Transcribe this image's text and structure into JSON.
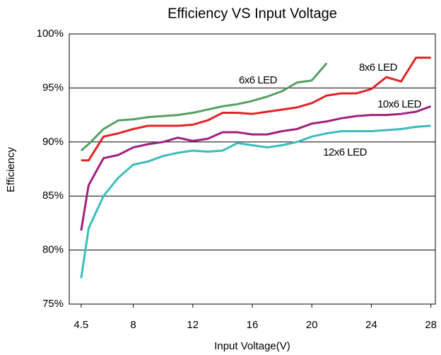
{
  "chart_data": {
    "type": "line",
    "title": "Efficiency VS Input Voltage",
    "x_label": "Input Voltage(V)",
    "y_label": "Efficiency",
    "x": [
      4.5,
      5,
      6,
      7,
      8,
      9,
      10,
      11,
      12,
      13,
      14,
      15,
      16,
      17,
      18,
      19,
      20,
      21,
      22,
      23,
      24,
      25,
      26,
      27,
      28
    ],
    "series": [
      {
        "name": "6x6 LED",
        "color": "#55a060",
        "values": [
          89.2,
          89.8,
          91.2,
          92.0,
          92.1,
          92.3,
          92.4,
          92.5,
          92.7,
          93.0,
          93.3,
          93.5,
          93.8,
          94.2,
          94.7,
          95.5,
          95.7,
          97.3,
          null,
          null,
          null,
          null,
          null,
          null,
          null
        ]
      },
      {
        "name": "8x6 LED",
        "color": "#e02424",
        "values": [
          88.3,
          88.3,
          90.5,
          90.8,
          91.2,
          91.5,
          91.5,
          91.5,
          91.6,
          92.0,
          92.7,
          92.7,
          92.6,
          92.8,
          93.0,
          93.2,
          93.6,
          94.3,
          94.5,
          94.5,
          94.9,
          96.0,
          95.6,
          97.8,
          97.8
        ]
      },
      {
        "name": "10x6 LED",
        "color": "#a02080",
        "values": [
          81.8,
          86.0,
          88.5,
          88.8,
          89.5,
          89.8,
          90.0,
          90.4,
          90.1,
          90.3,
          90.9,
          90.9,
          90.7,
          90.7,
          91.0,
          91.2,
          91.7,
          91.9,
          92.2,
          92.4,
          92.5,
          92.5,
          92.6,
          92.8,
          93.3
        ]
      },
      {
        "name": "12x6 LED",
        "color": "#3cbcbc",
        "values": [
          77.4,
          82.0,
          85.0,
          86.7,
          87.9,
          88.2,
          88.7,
          89.0,
          89.2,
          89.1,
          89.2,
          89.9,
          89.7,
          89.5,
          89.7,
          90.0,
          90.5,
          90.8,
          91.0,
          91.0,
          91.0,
          91.1,
          91.2,
          91.4,
          91.5
        ]
      }
    ],
    "xlim": [
      3.7,
      28.3
    ],
    "xticks": [
      4.5,
      8,
      12,
      16,
      20,
      24,
      28
    ],
    "ylim": [
      75,
      100
    ],
    "yticks": [
      {
        "value": 75,
        "label": "75%"
      },
      {
        "value": 80,
        "label": "80%"
      },
      {
        "value": 85,
        "label": "85%"
      },
      {
        "value": 90,
        "label": "90%"
      },
      {
        "value": 95,
        "label": "95%"
      },
      {
        "value": 100,
        "label": "100%"
      }
    ],
    "grid": true
  }
}
